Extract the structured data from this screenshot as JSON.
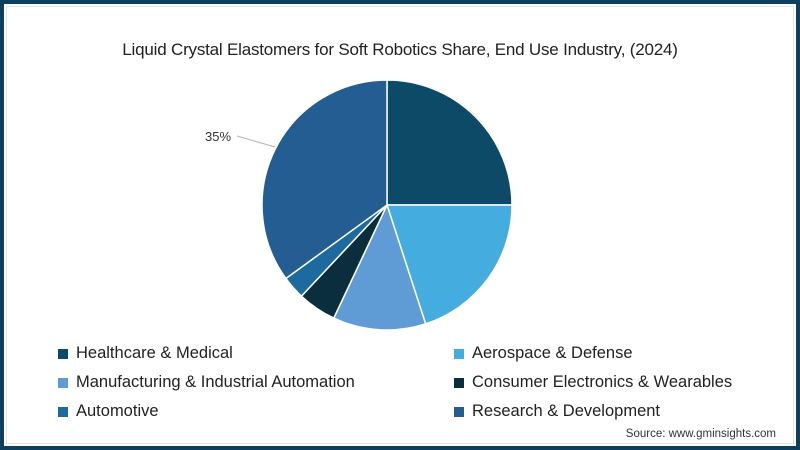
{
  "title": "Liquid Crystal Elastomers for Soft Robotics Share, End Use Industry, (2024)",
  "source": "Source: www.gminsights.com",
  "colors": {
    "healthcare": "#0d4a68",
    "aerospace": "#45ace0",
    "manufacturing": "#5f9bd4",
    "consumer": "#0b2e3e",
    "automotive": "#1c6aa0",
    "research": "#235d92",
    "frame": "#0e3f5c"
  },
  "legend": [
    {
      "label": "Healthcare & Medical",
      "color": "#0d4a68"
    },
    {
      "label": "Aerospace & Defense",
      "color": "#45ace0"
    },
    {
      "label": "Manufacturing & Industrial Automation",
      "color": "#5f9bd4"
    },
    {
      "label": "Consumer Electronics & Wearables",
      "color": "#0b2e3e"
    },
    {
      "label": "Automotive",
      "color": "#1c6aa0"
    },
    {
      "label": "Research & Development",
      "color": "#235d92"
    }
  ],
  "data_label": "35%",
  "chart_data": {
    "type": "pie",
    "title": "Liquid Crystal Elastomers for Soft Robotics Share, End Use Industry, (2024)",
    "categories": [
      "Healthcare & Medical",
      "Aerospace & Defense",
      "Manufacturing & Industrial Automation",
      "Consumer Electronics & Wearables",
      "Automotive",
      "Research & Development"
    ],
    "values": [
      25,
      20,
      12,
      5,
      3,
      35
    ],
    "unit": "%",
    "labeled_values": {
      "Research & Development": "35%"
    },
    "start_angle": "12 o'clock, clockwise",
    "legend_position": "bottom",
    "source": "www.gminsights.com"
  }
}
